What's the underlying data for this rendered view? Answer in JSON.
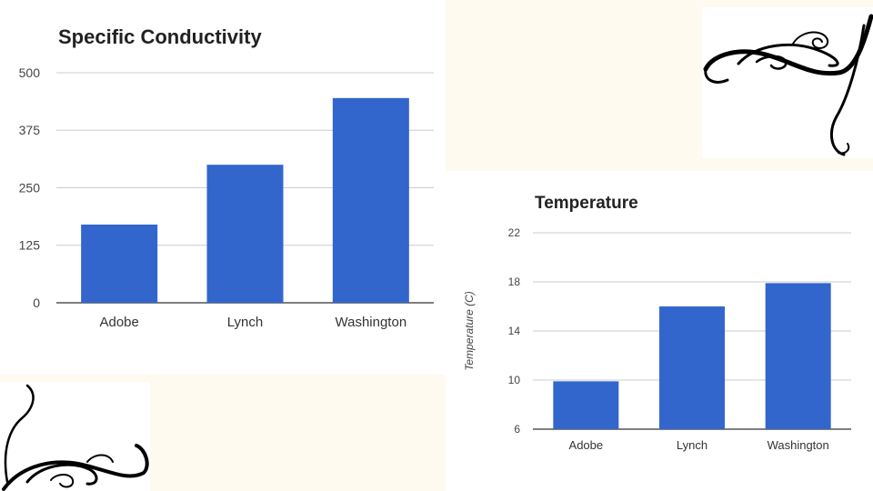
{
  "colors": {
    "bar": "#3366cc",
    "background": "#fefaf0"
  },
  "decorations": [
    {
      "name": "swirl-top-right-icon"
    },
    {
      "name": "swirl-bottom-left-icon"
    }
  ],
  "chart_data": [
    {
      "type": "bar",
      "title": "Specific Conductivity",
      "categories": [
        "Adobe",
        "Lynch",
        "Washington"
      ],
      "values": [
        170,
        300,
        445
      ],
      "ylim": [
        0,
        500
      ],
      "yticks": [
        0,
        125,
        250,
        375,
        500
      ],
      "xlabel": "",
      "ylabel": "",
      "grid": true,
      "legend": "none"
    },
    {
      "type": "bar",
      "title": "Temperature",
      "categories": [
        "Adobe",
        "Lynch",
        "Washington"
      ],
      "values": [
        9.9,
        16,
        17.9
      ],
      "ylim": [
        6,
        22
      ],
      "yticks": [
        6,
        10,
        14,
        18,
        22
      ],
      "xlabel": "",
      "ylabel": "Temperature (C)",
      "grid": true,
      "legend": "none"
    }
  ]
}
